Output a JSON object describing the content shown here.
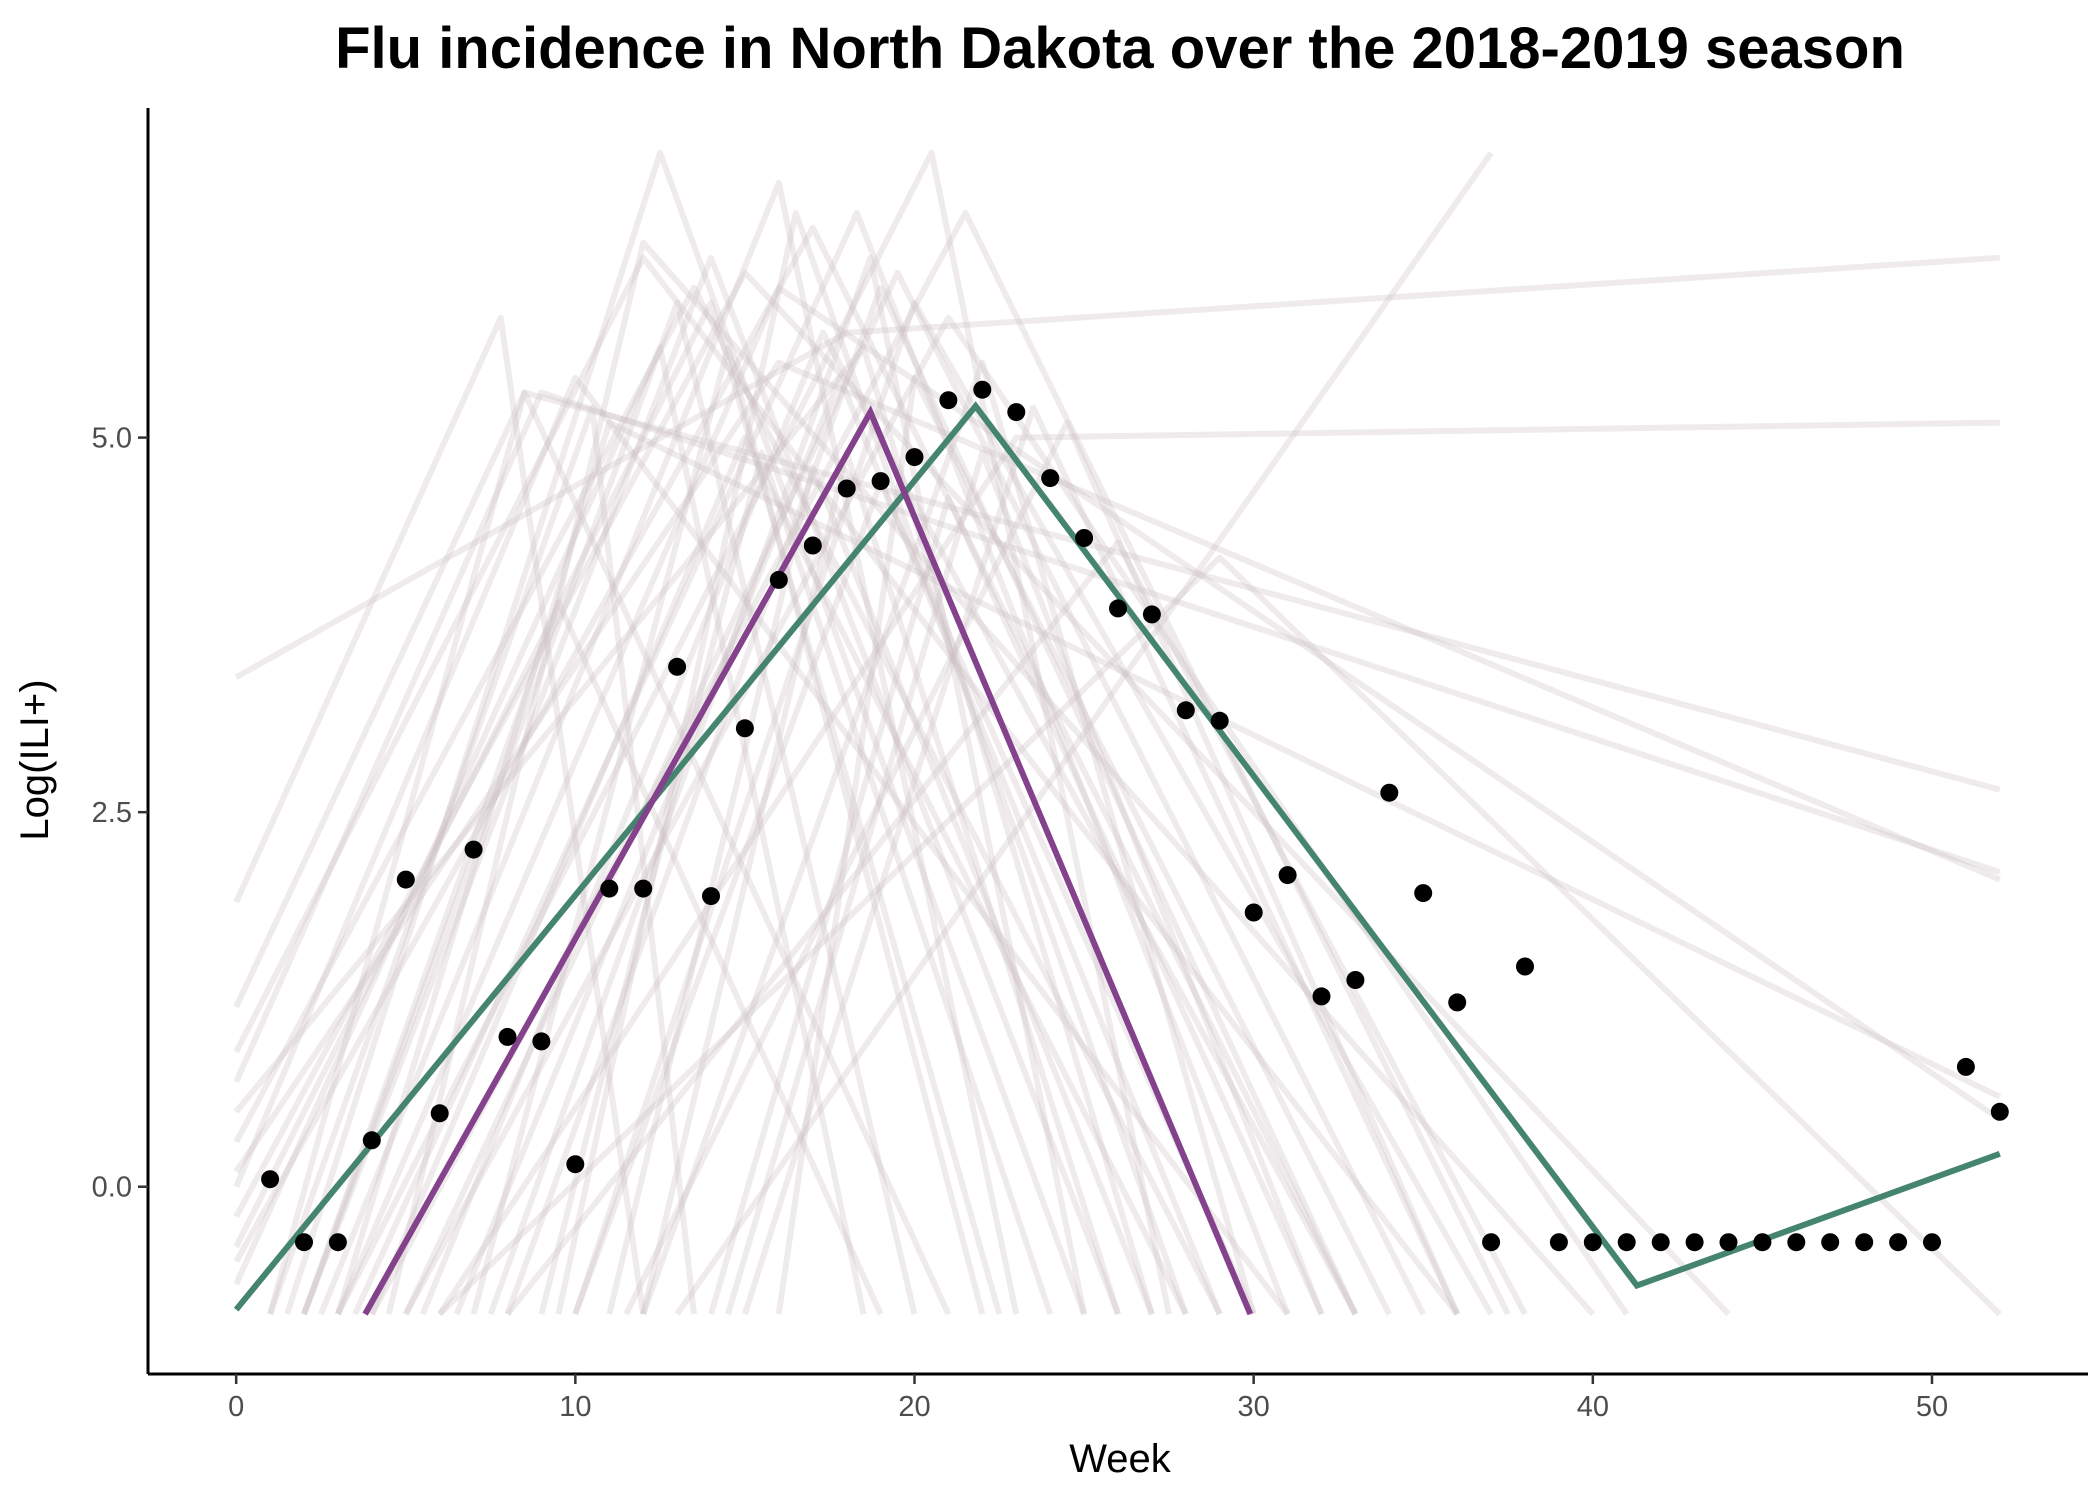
{
  "chart_data": {
    "type": "line",
    "title": "Flu incidence in North Dakota over the 2018-2019 season",
    "xlabel": "Week",
    "ylabel": "Log(ILI+)",
    "xlim": [
      -2.6,
      54.6
    ],
    "ylim": [
      -1.25,
      7.2
    ],
    "xticks": [
      0,
      10,
      20,
      30,
      40,
      50
    ],
    "yticks": [
      0.0,
      2.5,
      5.0
    ],
    "ytick_labels": [
      "0.0",
      "2.5",
      "5.0"
    ],
    "grid": false,
    "legend": "none",
    "observed_points": {
      "color": "#000000",
      "x": [
        1,
        2,
        3,
        4,
        5,
        6,
        7,
        8,
        9,
        10,
        11,
        12,
        13,
        14,
        15,
        16,
        17,
        18,
        19,
        20,
        21,
        22,
        23,
        24,
        25,
        26,
        27,
        28,
        29,
        30,
        31,
        32,
        33,
        34,
        35,
        36,
        37,
        38,
        39,
        40,
        41,
        42,
        43,
        44,
        45,
        46,
        47,
        48,
        49,
        50,
        51,
        52
      ],
      "y": [
        0.05,
        -0.37,
        -0.37,
        0.31,
        2.05,
        0.49,
        2.25,
        1.0,
        0.97,
        0.15,
        1.99,
        1.99,
        3.47,
        1.94,
        3.06,
        4.05,
        4.28,
        4.66,
        4.71,
        4.87,
        5.25,
        5.32,
        5.17,
        4.73,
        4.33,
        3.86,
        3.82,
        3.18,
        3.11,
        1.83,
        2.08,
        1.27,
        1.38,
        2.63,
        1.96,
        1.23,
        -0.37,
        1.47,
        -0.37,
        -0.37,
        -0.37,
        -0.37,
        -0.37,
        -0.37,
        -0.37,
        -0.37,
        -0.37,
        -0.37,
        -0.37,
        -0.37,
        0.8,
        0.5
      ]
    },
    "fitted_series": [
      {
        "color": "#45846e",
        "x": [
          0,
          21.8,
          41.3,
          52
        ],
        "y": [
          -0.82,
          5.21,
          -0.66,
          0.22
        ]
      },
      {
        "color": "#84418c",
        "x": [
          3.8,
          18.7,
          29.9
        ],
        "y": [
          -0.85,
          5.17,
          -0.85
        ]
      }
    ],
    "simulated_series": {
      "color": "#c9bcbf",
      "opacity": 0.3,
      "lines": [
        {
          "x": [
            0,
            7.8,
            12
          ],
          "y": [
            1.9,
            5.8,
            -0.85
          ]
        },
        {
          "x": [
            0,
            18,
            52
          ],
          "y": [
            3.4,
            5.7,
            6.2
          ]
        },
        {
          "x": [
            0,
            12,
            36
          ],
          "y": [
            0.9,
            6.2,
            -0.85
          ]
        },
        {
          "x": [
            0,
            8.5,
            21
          ],
          "y": [
            1.2,
            5.3,
            -0.85
          ]
        },
        {
          "x": [
            0,
            9,
            52
          ],
          "y": [
            0.7,
            5.3,
            2.1
          ]
        },
        {
          "x": [
            0,
            13.5,
            29
          ],
          "y": [
            0.3,
            6.0,
            -0.85
          ]
        },
        {
          "x": [
            0,
            15,
            44
          ],
          "y": [
            -0.2,
            6.1,
            -0.85
          ]
        },
        {
          "x": [
            0,
            17,
            33
          ],
          "y": [
            -0.5,
            6.4,
            -0.85
          ]
        },
        {
          "x": [
            0,
            16,
            52
          ],
          "y": [
            0.1,
            5.5,
            2.05
          ]
        },
        {
          "x": [
            1,
            10.5,
            13.5
          ],
          "y": [
            -0.85,
            5.2,
            -0.85
          ]
        },
        {
          "x": [
            1.5,
            12.5,
            25
          ],
          "y": [
            -0.85,
            6.9,
            -0.85
          ]
        },
        {
          "x": [
            2,
            14,
            26
          ],
          "y": [
            -0.85,
            6.2,
            -0.85
          ]
        },
        {
          "x": [
            2.5,
            16,
            23
          ],
          "y": [
            -0.85,
            6.7,
            -0.85
          ]
        },
        {
          "x": [
            3,
            20.5,
            27.5
          ],
          "y": [
            -0.85,
            6.9,
            -0.85
          ]
        },
        {
          "x": [
            3.5,
            18.3,
            31
          ],
          "y": [
            -0.85,
            6.5,
            -0.85
          ]
        },
        {
          "x": [
            4,
            21.5,
            37.5
          ],
          "y": [
            -0.85,
            6.5,
            -0.85
          ]
        },
        {
          "x": [
            5,
            19.5,
            35
          ],
          "y": [
            -0.85,
            6.1,
            -0.85
          ]
        },
        {
          "x": [
            6,
            23,
            52
          ],
          "y": [
            -0.85,
            5.0,
            5.1
          ]
        },
        {
          "x": [
            6.5,
            17.8,
            29
          ],
          "y": [
            -0.85,
            5.4,
            -0.85
          ]
        },
        {
          "x": [
            7,
            14.5,
            22
          ],
          "y": [
            -0.85,
            5.6,
            -0.85
          ]
        },
        {
          "x": [
            8,
            19,
            33
          ],
          "y": [
            -0.85,
            6.0,
            -0.85
          ]
        },
        {
          "x": [
            9,
            15.5,
            24
          ],
          "y": [
            -0.85,
            4.9,
            -0.85
          ]
        },
        {
          "x": [
            10,
            20,
            37
          ],
          "y": [
            -0.85,
            5.9,
            -0.85
          ]
        },
        {
          "x": [
            11,
            17,
            27
          ],
          "y": [
            -0.85,
            4.8,
            -0.85
          ]
        },
        {
          "x": [
            12,
            22,
            30
          ],
          "y": [
            -0.85,
            5.5,
            -0.85
          ]
        },
        {
          "x": [
            13,
            37,
            37
          ],
          "y": [
            -0.85,
            6.9,
            6.9
          ]
        },
        {
          "x": [
            14,
            21,
            32
          ],
          "y": [
            -0.85,
            4.6,
            -0.85
          ]
        },
        {
          "x": [
            15,
            23.5,
            36
          ],
          "y": [
            -0.85,
            5.2,
            -0.85
          ]
        },
        {
          "x": [
            16,
            20,
            34
          ],
          "y": [
            -0.85,
            5.4,
            -0.85
          ]
        },
        {
          "x": [
            5.5,
            17.3,
            33
          ],
          "y": [
            -0.85,
            5.7,
            -0.85
          ]
        },
        {
          "x": [
            4.5,
            12,
            40
          ],
          "y": [
            -0.85,
            6.3,
            -0.85
          ]
        },
        {
          "x": [
            7.5,
            18.7,
            25
          ],
          "y": [
            -0.85,
            6.2,
            -0.85
          ]
        },
        {
          "x": [
            3,
            11,
            52
          ],
          "y": [
            -0.85,
            5.1,
            0.6
          ]
        },
        {
          "x": [
            2,
            13,
            20
          ],
          "y": [
            -0.85,
            5.9,
            -0.85
          ]
        },
        {
          "x": [
            9.5,
            16.5,
            28
          ],
          "y": [
            -0.85,
            6.5,
            -0.85
          ]
        },
        {
          "x": [
            1,
            8.5,
            52
          ],
          "y": [
            -0.85,
            5.3,
            2.65
          ]
        },
        {
          "x": [
            11.5,
            24.5,
            36
          ],
          "y": [
            -0.85,
            5.1,
            -0.85
          ]
        },
        {
          "x": [
            6,
            29,
            52
          ],
          "y": [
            -0.85,
            4.2,
            -0.85
          ]
        },
        {
          "x": [
            5,
            21,
            41
          ],
          "y": [
            -0.85,
            5.8,
            -0.85
          ]
        },
        {
          "x": [
            0,
            10,
            31
          ],
          "y": [
            0.0,
            5.4,
            -0.85
          ]
        },
        {
          "x": [
            0,
            14,
            22.5
          ],
          "y": [
            -0.4,
            5.9,
            -0.85
          ]
        },
        {
          "x": [
            0,
            18.5,
            27
          ],
          "y": [
            0.5,
            5.6,
            -0.85
          ]
        },
        {
          "x": [
            0,
            12.5,
            18.5
          ],
          "y": [
            -0.65,
            5.6,
            -0.85
          ]
        },
        {
          "x": [
            3,
            16,
            52
          ],
          "y": [
            -0.85,
            6.0,
            0.45
          ]
        },
        {
          "x": [
            8,
            26,
            38
          ],
          "y": [
            -0.85,
            4.3,
            -0.85
          ]
        },
        {
          "x": [
            10,
            19,
            30
          ],
          "y": [
            -0.85,
            4.7,
            -0.85
          ]
        },
        {
          "x": [
            12,
            18,
            26
          ],
          "y": [
            -0.85,
            4.9,
            -0.85
          ]
        },
        {
          "x": [
            14.5,
            22,
            32
          ],
          "y": [
            -0.85,
            4.9,
            -0.85
          ]
        },
        {
          "x": [
            4,
            15,
            28
          ],
          "y": [
            -0.85,
            5.0,
            -0.85
          ]
        },
        {
          "x": [
            2,
            9.5,
            19
          ],
          "y": [
            -0.85,
            3.9,
            -0.85
          ]
        }
      ]
    }
  }
}
